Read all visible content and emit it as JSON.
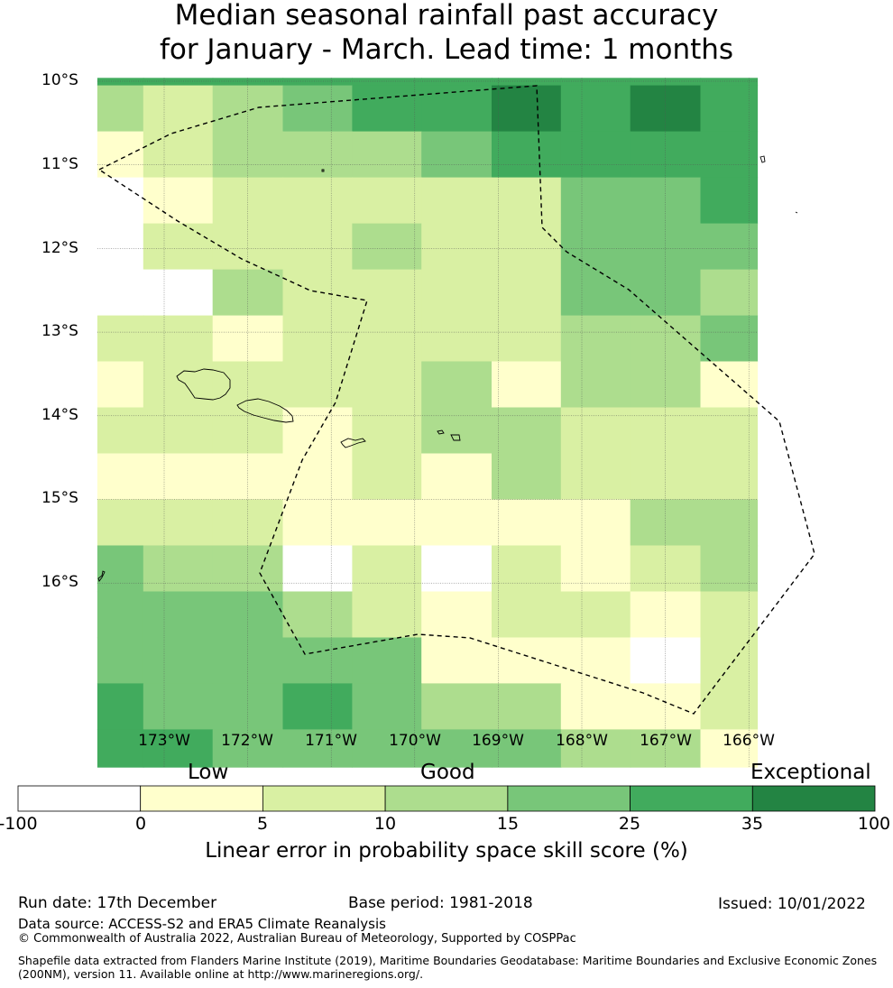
{
  "title": {
    "line1": "Median seasonal rainfall past accuracy",
    "line2": "for January - March. Lead time: 1 months"
  },
  "axes": {
    "lat_labels": [
      "10°S",
      "11°S",
      "12°S",
      "13°S",
      "14°S",
      "15°S",
      "16°S"
    ],
    "lon_labels": [
      "173°W",
      "172°W",
      "171°W",
      "170°W",
      "169°W",
      "168°W",
      "167°W",
      "166°W"
    ],
    "lat_values": [
      -10,
      -11,
      -12,
      -13,
      -14,
      -15,
      -16
    ],
    "lon_values": [
      -173,
      -172,
      -171,
      -170,
      -169,
      -168,
      -167,
      -166
    ]
  },
  "colorbar": {
    "categories": [
      "Low",
      "Good",
      "Exceptional"
    ],
    "ticks": [
      "-100",
      "0",
      "5",
      "10",
      "15",
      "25",
      "35",
      "100"
    ],
    "colors": [
      "#ffffff",
      "#ffffcc",
      "#d9f0a3",
      "#addd8e",
      "#78c679",
      "#41ab5d",
      "#238443"
    ],
    "label": "Linear error in probability space skill score (%)"
  },
  "grid": {
    "columns": [
      -173.8,
      -173.25,
      -172.42,
      -171.58,
      -170.75,
      -169.92,
      -169.08,
      -168.25,
      -167.42,
      -166.58,
      -165.9
    ],
    "rows": [
      -9.96,
      -10.05,
      -10.6,
      -11.15,
      -11.7,
      -12.25,
      -12.8,
      -13.35,
      -13.9,
      -14.45,
      -15.0,
      -15.55,
      -16.1,
      -16.65,
      -17.2,
      -17.75,
      -18.2
    ],
    "levels": [
      [
        5,
        5,
        5,
        5,
        5,
        5,
        5,
        5,
        5,
        5
      ],
      [
        3,
        2,
        3,
        4,
        5,
        5,
        6,
        5,
        6,
        5
      ],
      [
        1,
        2,
        3,
        3,
        3,
        4,
        5,
        5,
        5,
        5
      ],
      [
        0,
        1,
        2,
        2,
        2,
        2,
        2,
        4,
        4,
        5
      ],
      [
        0,
        2,
        2,
        2,
        3,
        2,
        2,
        4,
        4,
        4
      ],
      [
        0,
        0,
        3,
        2,
        2,
        2,
        2,
        4,
        4,
        3
      ],
      [
        2,
        2,
        1,
        2,
        2,
        2,
        2,
        3,
        3,
        4
      ],
      [
        1,
        2,
        2,
        2,
        2,
        3,
        1,
        3,
        3,
        1
      ],
      [
        2,
        2,
        2,
        1,
        2,
        3,
        3,
        2,
        2,
        2
      ],
      [
        1,
        1,
        1,
        1,
        2,
        1,
        3,
        2,
        2,
        2
      ],
      [
        2,
        2,
        2,
        1,
        1,
        1,
        1,
        1,
        3,
        3
      ],
      [
        4,
        3,
        3,
        0,
        2,
        0,
        2,
        1,
        2,
        3
      ],
      [
        4,
        4,
        4,
        3,
        2,
        1,
        2,
        2,
        1,
        2
      ],
      [
        4,
        4,
        4,
        4,
        4,
        1,
        1,
        1,
        0,
        2
      ],
      [
        5,
        4,
        4,
        5,
        4,
        3,
        3,
        1,
        1,
        2
      ],
      [
        5,
        5,
        4,
        4,
        4,
        4,
        4,
        3,
        3,
        1
      ]
    ]
  },
  "footer": {
    "run_date": "Run date: 17th December",
    "base_period": "Base period: 1981-2018",
    "issued": "Issued: 10/01/2022",
    "data_source": "Data source: ACCESS-S2 and ERA5 Climate Reanalysis",
    "copyright": "© Commonwealth of Australia 2022, Australian Bureau of Meteorology, Supported by COSPPac",
    "shapefile_line1": "Shapefile data extracted from Flanders Marine Institute (2019), Maritime Boundaries Geodatabase: Maritime Boundaries and Exclusive Economic Zones",
    "shapefile_line2": "(200NM), version 11. Available online at http://www.marineregions.org/."
  }
}
